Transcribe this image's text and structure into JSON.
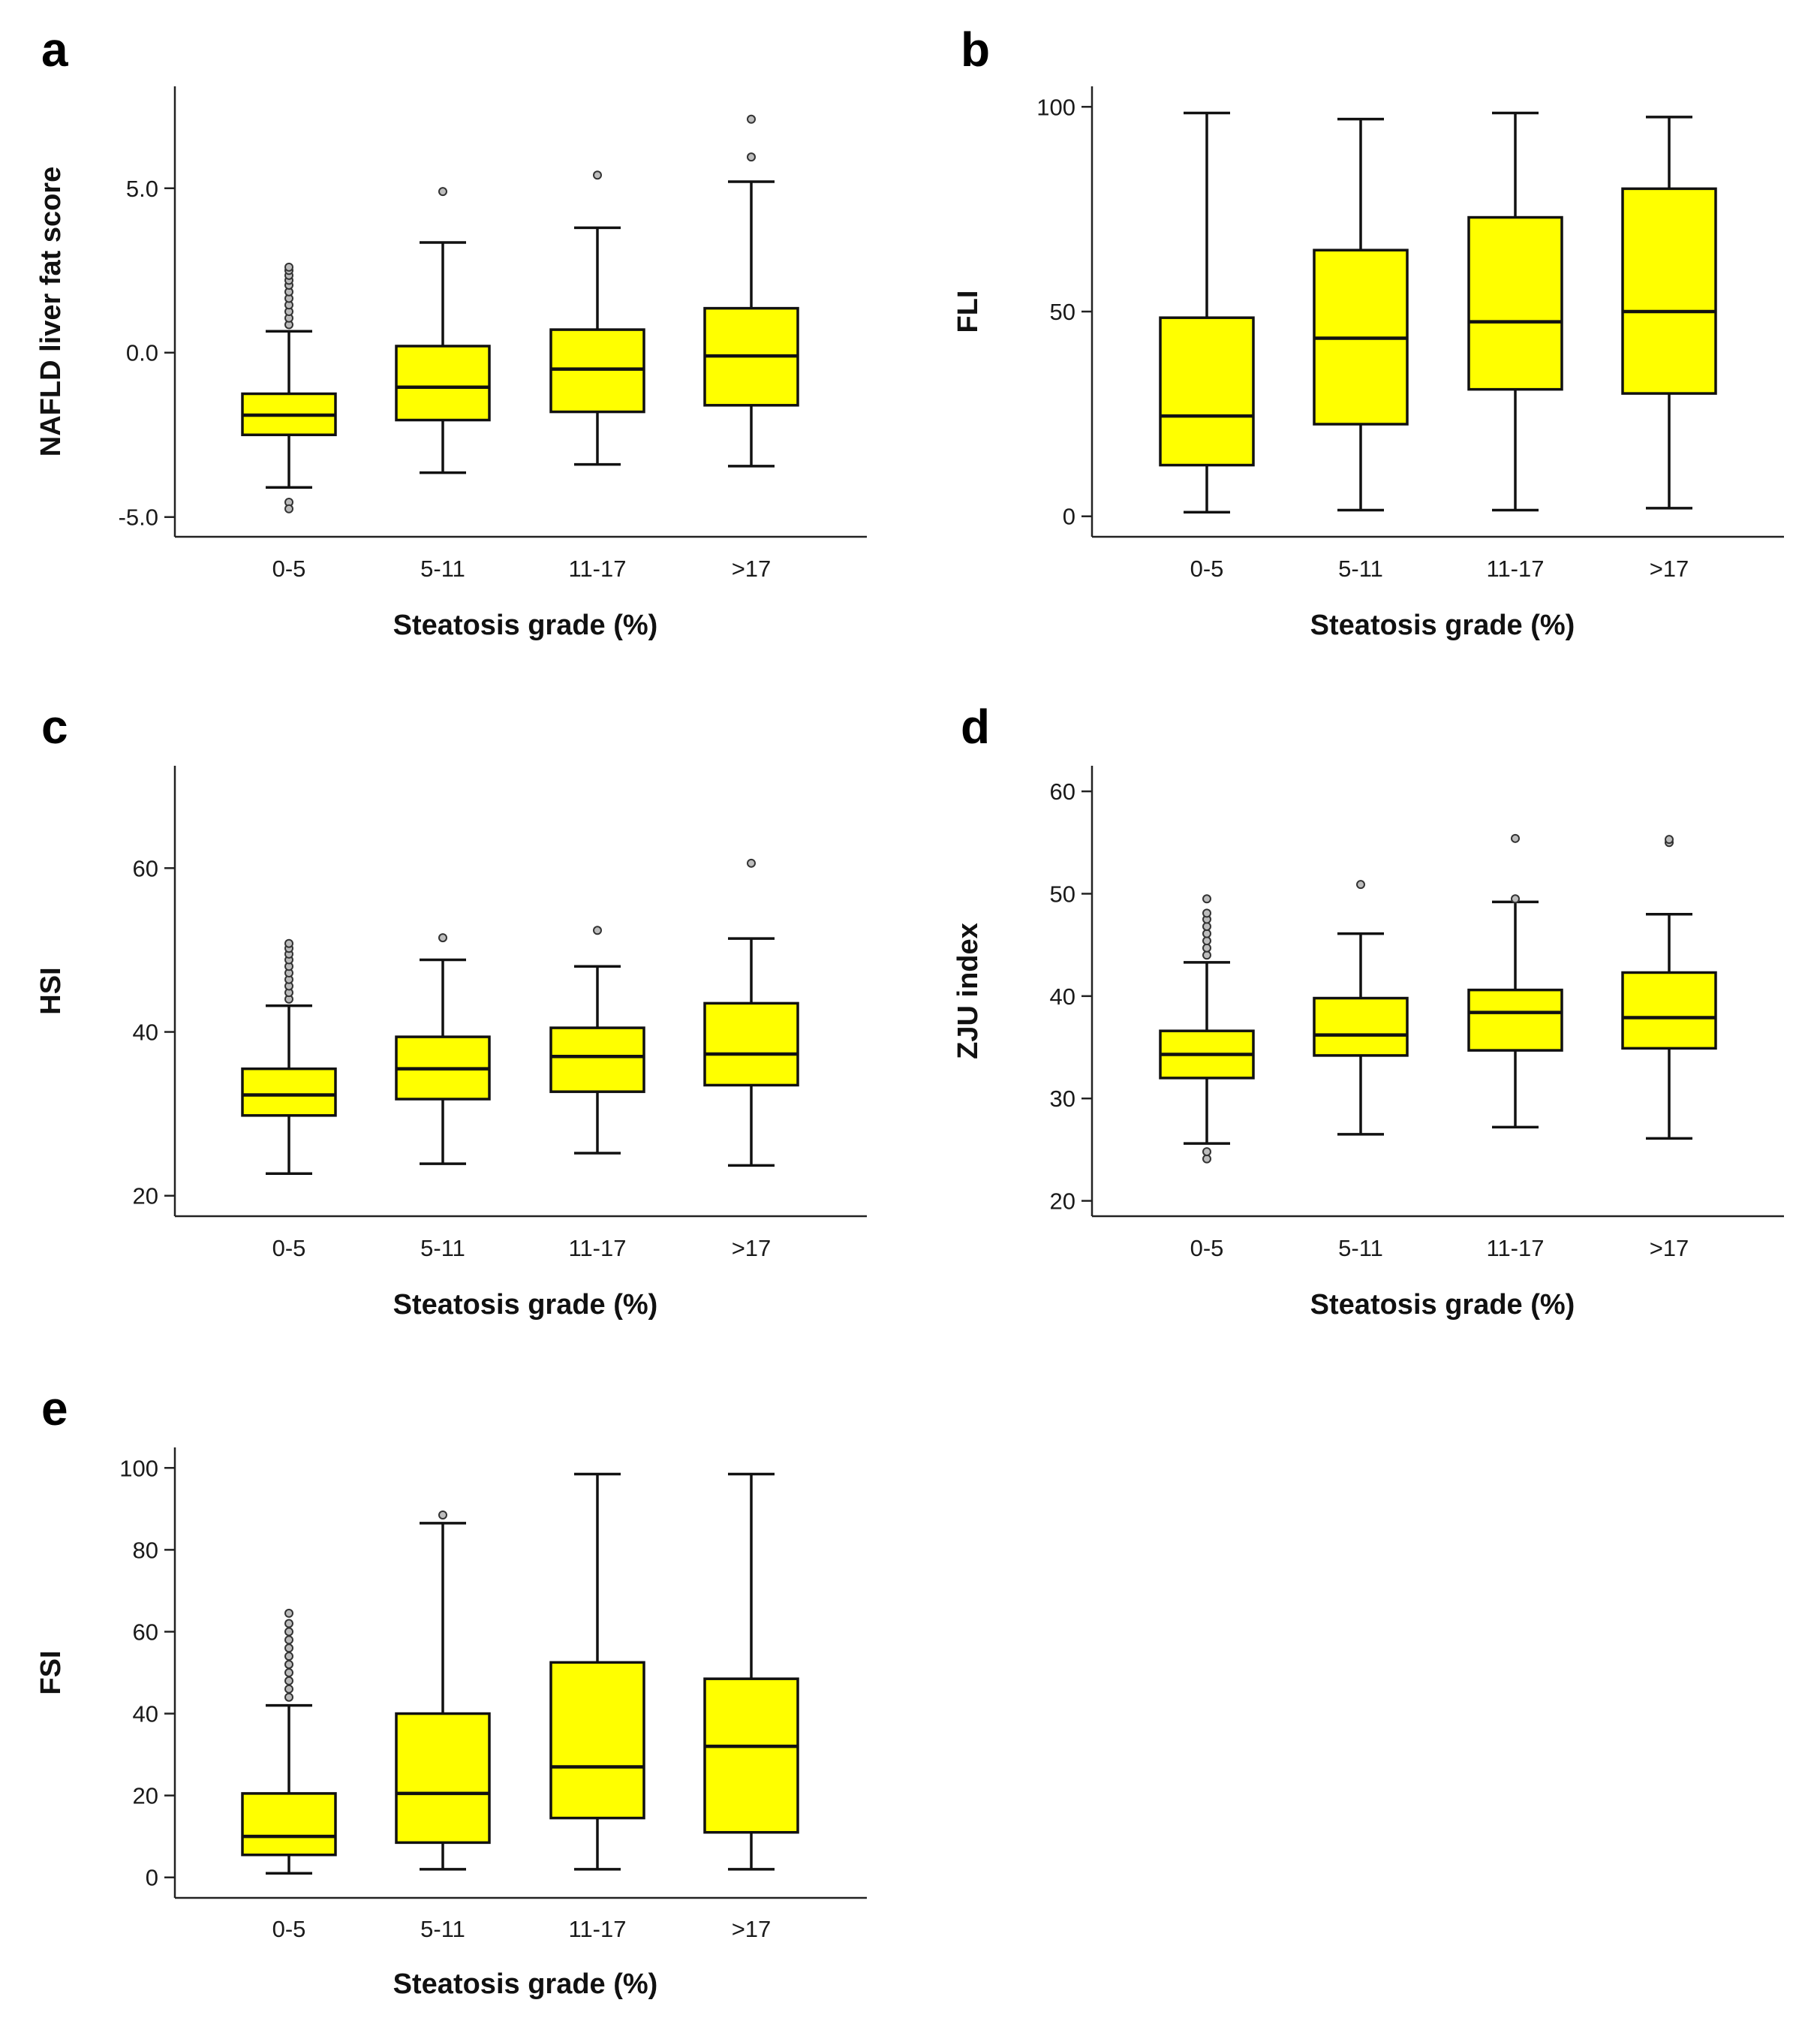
{
  "figure": {
    "box_fill": "#ffff00",
    "box_stroke": "#111111",
    "background": "#ffffff"
  },
  "chart_data": [
    {
      "type": "boxplot",
      "panel": "a",
      "ylabel": "NAFLD liver fat score",
      "xlabel": "Steatosis grade (%)",
      "categories": [
        "0-5",
        "5-11",
        "11-17",
        ">17"
      ],
      "ylim": [
        -5.6,
        8.1
      ],
      "yticks": [
        -5.0,
        0.0,
        5.0
      ],
      "ytick_labels": [
        "-5.0",
        "0.0",
        "5.0"
      ],
      "boxes": [
        {
          "whislo": -4.1,
          "q1": -2.5,
          "med": -1.9,
          "q3": -1.25,
          "whishi": 0.65,
          "fliers": [
            -4.55,
            -4.75,
            0.85,
            1.05,
            1.25,
            1.45,
            1.65,
            1.85,
            2.05,
            2.2,
            2.35,
            2.5,
            2.6
          ]
        },
        {
          "whislo": -3.65,
          "q1": -2.05,
          "med": -1.05,
          "q3": 0.2,
          "whishi": 3.35,
          "fliers": [
            4.9
          ]
        },
        {
          "whislo": -3.4,
          "q1": -1.8,
          "med": -0.5,
          "q3": 0.7,
          "whishi": 3.8,
          "fliers": [
            5.4
          ]
        },
        {
          "whislo": -3.45,
          "q1": -1.6,
          "med": -0.1,
          "q3": 1.35,
          "whishi": 5.2,
          "fliers": [
            5.95,
            7.1
          ]
        }
      ]
    },
    {
      "type": "boxplot",
      "panel": "b",
      "ylabel": "FLI",
      "xlabel": "Steatosis grade (%)",
      "categories": [
        "0-5",
        "5-11",
        "11-17",
        ">17"
      ],
      "ylim": [
        -5,
        105
      ],
      "yticks": [
        0,
        50,
        100
      ],
      "ytick_labels": [
        "0",
        "50",
        "100"
      ],
      "boxes": [
        {
          "whislo": 1,
          "q1": 12.5,
          "med": 24.5,
          "q3": 48.5,
          "whishi": 98.5,
          "fliers": []
        },
        {
          "whislo": 1.5,
          "q1": 22.5,
          "med": 43.5,
          "q3": 65,
          "whishi": 97,
          "fliers": []
        },
        {
          "whislo": 1.5,
          "q1": 31,
          "med": 47.5,
          "q3": 73,
          "whishi": 98.5,
          "fliers": []
        },
        {
          "whislo": 2,
          "q1": 30,
          "med": 50,
          "q3": 80,
          "whishi": 97.5,
          "fliers": []
        }
      ]
    },
    {
      "type": "boxplot",
      "panel": "c",
      "ylabel": "HSI",
      "xlabel": "Steatosis grade (%)",
      "categories": [
        "0-5",
        "5-11",
        "11-17",
        ">17"
      ],
      "ylim": [
        17.5,
        72.5
      ],
      "yticks": [
        20,
        40,
        60
      ],
      "ytick_labels": [
        "20",
        "40",
        "60"
      ],
      "boxes": [
        {
          "whislo": 22.7,
          "q1": 29.8,
          "med": 32.3,
          "q3": 35.5,
          "whishi": 43.2,
          "fliers": [
            44,
            44.8,
            45.6,
            46.4,
            47.2,
            48,
            48.8,
            49.5,
            50.2,
            50.8
          ]
        },
        {
          "whislo": 23.9,
          "q1": 31.8,
          "med": 35.5,
          "q3": 39.4,
          "whishi": 48.8,
          "fliers": [
            51.5
          ]
        },
        {
          "whislo": 25.2,
          "q1": 32.7,
          "med": 37,
          "q3": 40.5,
          "whishi": 48,
          "fliers": [
            52.4
          ]
        },
        {
          "whislo": 23.7,
          "q1": 33.5,
          "med": 37.3,
          "q3": 43.5,
          "whishi": 51.4,
          "fliers": [
            60.6
          ]
        }
      ]
    },
    {
      "type": "boxplot",
      "panel": "d",
      "ylabel": "ZJU index",
      "xlabel": "Steatosis grade (%)",
      "categories": [
        "0-5",
        "5-11",
        "11-17",
        ">17"
      ],
      "ylim": [
        18.5,
        62.5
      ],
      "yticks": [
        20,
        30,
        40,
        50,
        60
      ],
      "ytick_labels": [
        "20",
        "30",
        "40",
        "50",
        "60"
      ],
      "boxes": [
        {
          "whislo": 25.6,
          "q1": 32,
          "med": 34.3,
          "q3": 36.6,
          "whishi": 43.3,
          "fliers": [
            24.1,
            24.8,
            44,
            44.7,
            45.4,
            46.1,
            46.8,
            47.5,
            48.1,
            49.5
          ]
        },
        {
          "whislo": 26.5,
          "q1": 34.2,
          "med": 36.2,
          "q3": 39.8,
          "whishi": 46.1,
          "fliers": [
            50.9
          ]
        },
        {
          "whislo": 27.2,
          "q1": 34.7,
          "med": 38.4,
          "q3": 40.6,
          "whishi": 49.2,
          "fliers": [
            49.5,
            55.4
          ]
        },
        {
          "whislo": 26.1,
          "q1": 34.9,
          "med": 37.9,
          "q3": 42.3,
          "whishi": 48,
          "fliers": [
            55,
            55.3
          ]
        }
      ]
    },
    {
      "type": "boxplot",
      "panel": "e",
      "ylabel": "FSI",
      "xlabel": "Steatosis grade (%)",
      "categories": [
        "0-5",
        "5-11",
        "11-17",
        ">17"
      ],
      "ylim": [
        -5,
        105
      ],
      "yticks": [
        0,
        20,
        40,
        60,
        80,
        100
      ],
      "ytick_labels": [
        "0",
        "20",
        "40",
        "60",
        "80",
        "100"
      ],
      "boxes": [
        {
          "whislo": 1,
          "q1": 5.5,
          "med": 10,
          "q3": 20.5,
          "whishi": 42,
          "fliers": [
            44,
            46,
            48,
            50,
            52,
            54,
            56,
            58,
            60,
            62,
            64.5
          ]
        },
        {
          "whislo": 2,
          "q1": 8.5,
          "med": 20.5,
          "q3": 40,
          "whishi": 86.5,
          "fliers": [
            88.5
          ]
        },
        {
          "whislo": 2,
          "q1": 14.5,
          "med": 27,
          "q3": 52.5,
          "whishi": 98.5,
          "fliers": []
        },
        {
          "whislo": 2,
          "q1": 11,
          "med": 32,
          "q3": 48.5,
          "whishi": 98.5,
          "fliers": []
        }
      ]
    }
  ]
}
